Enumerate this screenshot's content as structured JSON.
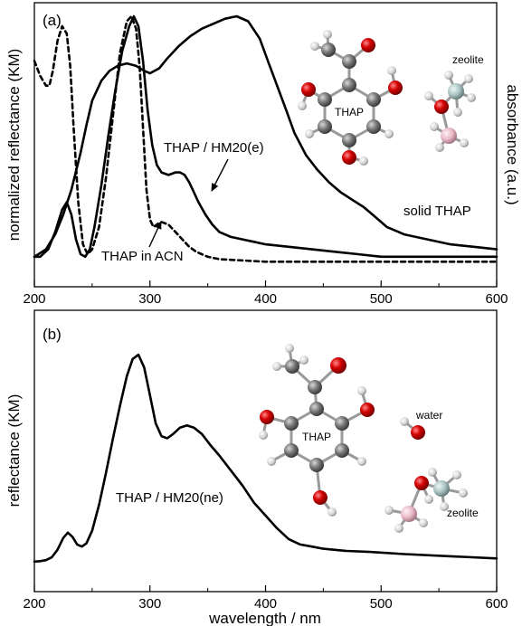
{
  "chart_data": [
    {
      "type": "line",
      "panel_label": "(a)",
      "xlim": [
        200,
        600
      ],
      "xticks": [
        200,
        300,
        400,
        500,
        600
      ],
      "ylabel_left": "normalized reflectance (KM)",
      "ylabel_right": "absorbance (a.u.)",
      "ylim": [
        0,
        1
      ],
      "series": [
        {
          "name": "solid THAP",
          "style": "solid",
          "x": [
            200,
            210,
            218,
            225,
            232,
            240,
            245,
            250,
            258,
            265,
            272,
            280,
            288,
            295,
            300,
            308,
            315,
            325,
            335,
            345,
            355,
            365,
            375,
            385,
            395,
            402,
            410,
            418,
            425,
            435,
            445,
            455,
            465,
            475,
            485,
            495,
            505,
            520,
            540,
            560,
            580,
            600
          ],
          "y": [
            0.03,
            0.06,
            0.12,
            0.2,
            0.3,
            0.45,
            0.56,
            0.66,
            0.74,
            0.78,
            0.8,
            0.81,
            0.8,
            0.78,
            0.77,
            0.79,
            0.83,
            0.88,
            0.92,
            0.95,
            0.97,
            0.99,
            1.0,
            0.98,
            0.91,
            0.82,
            0.72,
            0.62,
            0.53,
            0.44,
            0.38,
            0.33,
            0.29,
            0.26,
            0.23,
            0.19,
            0.15,
            0.12,
            0.1,
            0.08,
            0.07,
            0.06
          ]
        },
        {
          "name": "THAP / HM20(e)",
          "style": "solid",
          "x": [
            200,
            205,
            212,
            218,
            224,
            228,
            232,
            236,
            240,
            244,
            248,
            252,
            258,
            264,
            270,
            276,
            282,
            286,
            290,
            294,
            298,
            302,
            306,
            310,
            316,
            322,
            326,
            330,
            334,
            338,
            342,
            348,
            354,
            360,
            370,
            380,
            390,
            400,
            420,
            440,
            460,
            480,
            500,
            520,
            540,
            560,
            580,
            600
          ],
          "y": [
            0.03,
            0.03,
            0.06,
            0.13,
            0.22,
            0.25,
            0.2,
            0.1,
            0.04,
            0.03,
            0.06,
            0.15,
            0.32,
            0.52,
            0.7,
            0.86,
            0.96,
            1.0,
            0.96,
            0.82,
            0.62,
            0.48,
            0.4,
            0.37,
            0.36,
            0.37,
            0.37,
            0.36,
            0.33,
            0.29,
            0.25,
            0.2,
            0.16,
            0.13,
            0.11,
            0.1,
            0.09,
            0.08,
            0.07,
            0.06,
            0.05,
            0.04,
            0.03,
            0.03,
            0.03,
            0.03,
            0.03,
            0.03
          ]
        },
        {
          "name": "THAP in ACN",
          "style": "dashed",
          "x": [
            200,
            205,
            210,
            213,
            216,
            220,
            224,
            228,
            231,
            234,
            238,
            242,
            246,
            250,
            256,
            262,
            268,
            274,
            280,
            284,
            288,
            291,
            294,
            297,
            300,
            303,
            306,
            310,
            316,
            322,
            328,
            334,
            340,
            350,
            360,
            380,
            400,
            450,
            500,
            550,
            600
          ],
          "y": [
            0.82,
            0.76,
            0.72,
            0.72,
            0.78,
            0.9,
            0.96,
            0.93,
            0.8,
            0.55,
            0.25,
            0.08,
            0.04,
            0.06,
            0.15,
            0.35,
            0.6,
            0.85,
            0.98,
            1.0,
            0.95,
            0.8,
            0.55,
            0.3,
            0.18,
            0.15,
            0.16,
            0.17,
            0.16,
            0.13,
            0.1,
            0.07,
            0.05,
            0.03,
            0.02,
            0.015,
            0.01,
            0.01,
            0.01,
            0.01,
            0.01
          ]
        }
      ],
      "annotations": [
        {
          "text": "THAP / HM20(e)",
          "target_series": "THAP / HM20(e)",
          "arrow_to": [
            338,
            0.28
          ]
        },
        {
          "text": "solid THAP",
          "target_series": "solid THAP"
        },
        {
          "text": "THAP in ACN",
          "target_series": "THAP in ACN",
          "arrow_to": [
            308,
            0.16
          ]
        }
      ],
      "inset": {
        "molecule": "THAP",
        "label_center": "THAP",
        "label_side": "zeolite"
      }
    },
    {
      "type": "line",
      "panel_label": "(b)",
      "xlim": [
        200,
        600
      ],
      "xticks": [
        200,
        300,
        400,
        500,
        600
      ],
      "xlabel": "wavelength / nm",
      "ylabel": "reflectance (KM)",
      "ylim": [
        0,
        1
      ],
      "series": [
        {
          "name": "THAP / HM20(ne)",
          "style": "solid",
          "x": [
            200,
            205,
            210,
            215,
            220,
            225,
            229,
            233,
            237,
            241,
            245,
            250,
            256,
            262,
            268,
            274,
            280,
            285,
            290,
            295,
            300,
            305,
            310,
            315,
            320,
            326,
            332,
            338,
            345,
            352,
            360,
            370,
            380,
            390,
            400,
            410,
            420,
            430,
            440,
            450,
            460,
            470,
            490,
            520,
            560,
            600
          ],
          "y": [
            0.005,
            0.007,
            0.012,
            0.025,
            0.06,
            0.115,
            0.14,
            0.12,
            0.085,
            0.075,
            0.09,
            0.15,
            0.27,
            0.42,
            0.58,
            0.73,
            0.87,
            0.95,
            0.97,
            0.91,
            0.78,
            0.65,
            0.59,
            0.58,
            0.6,
            0.63,
            0.64,
            0.63,
            0.6,
            0.55,
            0.5,
            0.43,
            0.36,
            0.28,
            0.22,
            0.16,
            0.11,
            0.085,
            0.075,
            0.065,
            0.06,
            0.055,
            0.05,
            0.04,
            0.03,
            0.02
          ]
        }
      ],
      "annotations": [
        {
          "text": "THAP / HM20(ne)",
          "target_series": "THAP / HM20(ne)"
        }
      ],
      "inset": {
        "molecule": "THAP",
        "label_center": "THAP",
        "label_water": "water",
        "label_side": "zeolite"
      }
    }
  ],
  "colors": {
    "line": "#000000",
    "oxygen": "#d40000",
    "carbon": "#6e6e6e",
    "hydrogen": "#dcdcdc",
    "silicon": "#a9c3c0",
    "aluminum": "#e8b8c6"
  }
}
